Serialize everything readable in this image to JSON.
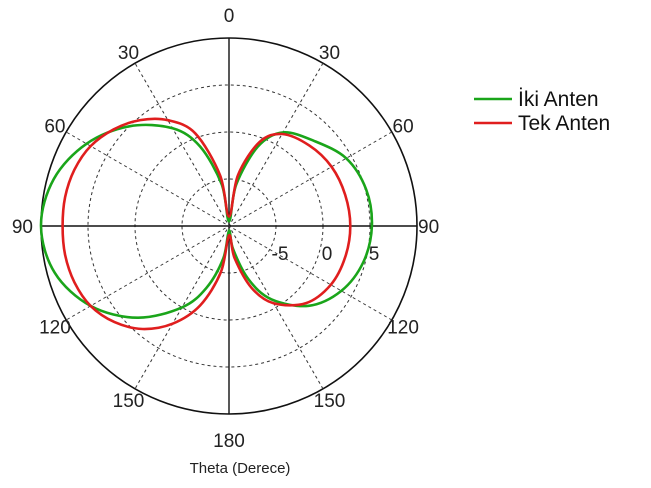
{
  "chart_data": {
    "type": "polar-line",
    "title": "",
    "xlabel": "Theta (Derece)",
    "theta_unit": "degrees",
    "theta_zero": "top",
    "theta_direction": "symmetric",
    "angle_ticks": [
      {
        "label": "0",
        "angle": 0,
        "side": "center"
      },
      {
        "label": "30",
        "angle": 30,
        "side": "left"
      },
      {
        "label": "30",
        "angle": 30,
        "side": "right"
      },
      {
        "label": "60",
        "angle": 60,
        "side": "left"
      },
      {
        "label": "60",
        "angle": 60,
        "side": "right"
      },
      {
        "label": "90",
        "angle": 90,
        "side": "left"
      },
      {
        "label": "90",
        "angle": 90,
        "side": "right"
      },
      {
        "label": "120",
        "angle": 120,
        "side": "left"
      },
      {
        "label": "120",
        "angle": 120,
        "side": "right"
      },
      {
        "label": "150",
        "angle": 150,
        "side": "left"
      },
      {
        "label": "150",
        "angle": 150,
        "side": "right"
      },
      {
        "label": "180",
        "angle": 180,
        "side": "center"
      }
    ],
    "radial_ticks": [
      {
        "label": "-5",
        "value": -5
      },
      {
        "label": "0",
        "value": 0
      },
      {
        "label": "5",
        "value": 5
      }
    ],
    "rlim": [
      -10,
      10
    ],
    "grid": true,
    "legend_position": "top-right",
    "series": [
      {
        "name": "İki Anten",
        "color": "#1aa51a",
        "points": [
          [
            -90,
            10
          ],
          [
            -75,
            9.3
          ],
          [
            -60,
            7.5
          ],
          [
            -45,
            5.0
          ],
          [
            -30,
            2.0
          ],
          [
            -20,
            -1.0
          ],
          [
            -10,
            -5.5
          ],
          [
            0,
            -9.5
          ],
          [
            10,
            -5.5
          ],
          [
            20,
            -1.0
          ],
          [
            30,
            1.5
          ],
          [
            45,
            2.8
          ],
          [
            60,
            4.4
          ],
          [
            75,
            5.1
          ],
          [
            90,
            5.2
          ],
          [
            105,
            4.8
          ],
          [
            120,
            3.8
          ],
          [
            135,
            2.0
          ],
          [
            150,
            -1.0
          ],
          [
            160,
            -4.0
          ],
          [
            170,
            -7.5
          ],
          [
            180,
            -9.5
          ],
          [
            190,
            -6.5
          ],
          [
            200,
            -3.0
          ],
          [
            210,
            0.0
          ],
          [
            225,
            3.8
          ],
          [
            240,
            7.0
          ],
          [
            255,
            9.2
          ]
        ]
      },
      {
        "name": "Tek Anten",
        "color": "#e01e1e",
        "points": [
          [
            -90,
            7.7
          ],
          [
            -80,
            7.7
          ],
          [
            -70,
            7.5
          ],
          [
            -60,
            7.0
          ],
          [
            -50,
            6.0
          ],
          [
            -40,
            4.7
          ],
          [
            -30,
            3.0
          ],
          [
            -20,
            0.5
          ],
          [
            -10,
            -4.5
          ],
          [
            0,
            -9.0
          ],
          [
            10,
            -4.5
          ],
          [
            20,
            -0.5
          ],
          [
            30,
            1.3
          ],
          [
            45,
            2.1
          ],
          [
            60,
            2.6
          ],
          [
            75,
            2.8
          ],
          [
            90,
            2.9
          ],
          [
            105,
            2.8
          ],
          [
            120,
            2.5
          ],
          [
            135,
            1.6
          ],
          [
            150,
            -0.5
          ],
          [
            160,
            -3.0
          ],
          [
            170,
            -6.5
          ],
          [
            180,
            -9.0
          ],
          [
            190,
            -5.0
          ],
          [
            200,
            -1.0
          ],
          [
            210,
            2.0
          ],
          [
            220,
            4.3
          ],
          [
            230,
            5.9
          ],
          [
            240,
            7.0
          ],
          [
            250,
            7.5
          ],
          [
            260,
            7.7
          ]
        ]
      }
    ]
  }
}
